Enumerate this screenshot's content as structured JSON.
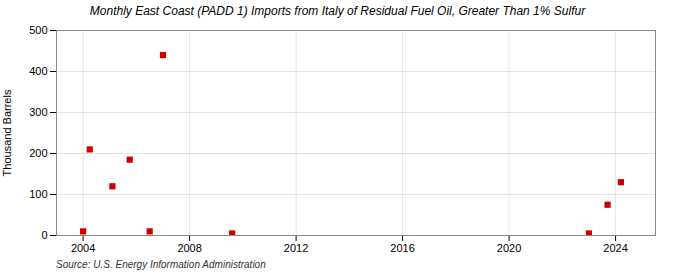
{
  "chart_data": {
    "type": "scatter",
    "title": "Monthly East Coast (PADD 1) Imports from Italy of Residual Fuel Oil, Greater Than 1% Sulfur",
    "ylabel": "Thousand Barrels",
    "source": "Source: U.S. Energy Information Administration",
    "x": [
      2004.0,
      2004.25,
      2005.1,
      2005.75,
      2006.5,
      2007.0,
      2009.6,
      2023.0,
      2023.7,
      2024.2
    ],
    "values": [
      10,
      210,
      120,
      185,
      10,
      440,
      5,
      5,
      75,
      130
    ],
    "color": "#cc0000",
    "marker": "square",
    "xlim": [
      2003.0,
      2025.5
    ],
    "xticks": [
      2004,
      2008,
      2012,
      2016,
      2020,
      2024
    ],
    "ylim": [
      0,
      500
    ],
    "yticks": [
      0,
      100,
      200,
      300,
      400,
      500
    ],
    "grid": true
  }
}
